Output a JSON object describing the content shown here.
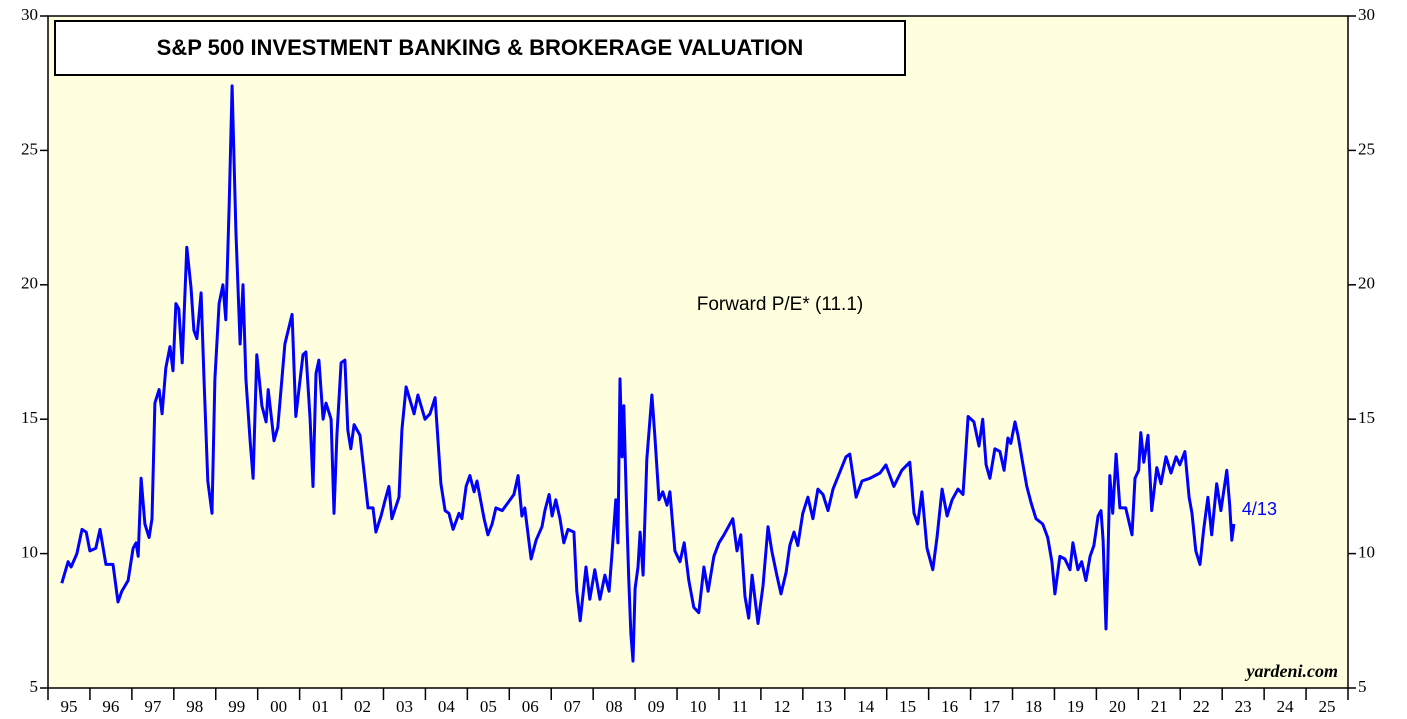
{
  "chart_data": {
    "type": "line",
    "title": "S&P 500 INVESTMENT BANKING & BROKERAGE VALUATION",
    "annotation": "Forward P/E* (11.1)",
    "end_label": "4/13",
    "source": "yardeni.com",
    "xlim": [
      1995,
      2026
    ],
    "ylim": [
      5,
      30
    ],
    "yticks": [
      5,
      10,
      15,
      20,
      25,
      30
    ],
    "xtick_marks": [
      1995,
      1996,
      1997,
      1998,
      1999,
      2000,
      2001,
      2002,
      2003,
      2004,
      2005,
      2006,
      2007,
      2008,
      2009,
      2010,
      2011,
      2012,
      2013,
      2014,
      2015,
      2016,
      2017,
      2018,
      2019,
      2020,
      2021,
      2022,
      2023,
      2024,
      2025,
      2026
    ],
    "xticks": [
      {
        "value": 1995.5,
        "label": "95"
      },
      {
        "value": 1996.5,
        "label": "96"
      },
      {
        "value": 1997.5,
        "label": "97"
      },
      {
        "value": 1998.5,
        "label": "98"
      },
      {
        "value": 1999.5,
        "label": "99"
      },
      {
        "value": 2000.5,
        "label": "00"
      },
      {
        "value": 2001.5,
        "label": "01"
      },
      {
        "value": 2002.5,
        "label": "02"
      },
      {
        "value": 2003.5,
        "label": "03"
      },
      {
        "value": 2004.5,
        "label": "04"
      },
      {
        "value": 2005.5,
        "label": "05"
      },
      {
        "value": 2006.5,
        "label": "06"
      },
      {
        "value": 2007.5,
        "label": "07"
      },
      {
        "value": 2008.5,
        "label": "08"
      },
      {
        "value": 2009.5,
        "label": "09"
      },
      {
        "value": 2010.5,
        "label": "10"
      },
      {
        "value": 2011.5,
        "label": "11"
      },
      {
        "value": 2012.5,
        "label": "12"
      },
      {
        "value": 2013.5,
        "label": "13"
      },
      {
        "value": 2014.5,
        "label": "14"
      },
      {
        "value": 2015.5,
        "label": "15"
      },
      {
        "value": 2016.5,
        "label": "16"
      },
      {
        "value": 2017.5,
        "label": "17"
      },
      {
        "value": 2018.5,
        "label": "18"
      },
      {
        "value": 2019.5,
        "label": "19"
      },
      {
        "value": 2020.5,
        "label": "20"
      },
      {
        "value": 2021.5,
        "label": "21"
      },
      {
        "value": 2022.5,
        "label": "22"
      },
      {
        "value": 2023.5,
        "label": "23"
      },
      {
        "value": 2024.5,
        "label": "24"
      },
      {
        "value": 2025.5,
        "label": "25"
      }
    ],
    "background": "#ffffe0",
    "series": [
      {
        "color": "#0000ff",
        "x": [
          1995.33,
          1995.48,
          1995.55,
          1995.69,
          1995.81,
          1995.91,
          1996.0,
          1996.14,
          1996.24,
          1996.38,
          1996.55,
          1996.67,
          1996.76,
          1996.91,
          1997.03,
          1997.1,
          1997.15,
          1997.22,
          1997.31,
          1997.41,
          1997.48,
          1997.55,
          1997.65,
          1997.72,
          1997.81,
          1997.91,
          1997.98,
          1998.05,
          1998.12,
          1998.2,
          1998.31,
          1998.41,
          1998.48,
          1998.55,
          1998.65,
          1998.72,
          1998.81,
          1998.91,
          1998.98,
          1999.08,
          1999.17,
          1999.24,
          1999.32,
          1999.39,
          1999.48,
          1999.58,
          1999.65,
          1999.72,
          1999.82,
          1999.89,
          1999.98,
          2000.1,
          2000.2,
          2000.25,
          2000.39,
          2000.48,
          2000.65,
          2000.82,
          2000.91,
          2001.08,
          2001.15,
          2001.25,
          2001.32,
          2001.39,
          2001.46,
          2001.56,
          2001.63,
          2001.75,
          2001.82,
          2001.89,
          2001.99,
          2002.08,
          2002.15,
          2002.22,
          2002.3,
          2002.44,
          2002.63,
          2002.75,
          2002.82,
          2002.94,
          2003.04,
          2003.13,
          2003.2,
          2003.37,
          2003.44,
          2003.54,
          2003.73,
          2003.82,
          2003.99,
          2004.11,
          2004.23,
          2004.37,
          2004.47,
          2004.56,
          2004.66,
          2004.8,
          2004.87,
          2004.97,
          2005.06,
          2005.16,
          2005.23,
          2005.4,
          2005.49,
          2005.59,
          2005.68,
          2005.83,
          2006.02,
          2006.11,
          2006.21,
          2006.3,
          2006.37,
          2006.52,
          2006.64,
          2006.78,
          2006.85,
          2006.95,
          2007.02,
          2007.11,
          2007.21,
          2007.3,
          2007.4,
          2007.54,
          2007.61,
          2007.69,
          2007.83,
          2007.92,
          2008.04,
          2008.16,
          2008.28,
          2008.38,
          2008.45,
          2008.54,
          2008.59,
          2008.64,
          2008.69,
          2008.73,
          2008.81,
          2008.85,
          2008.9,
          2008.95,
          2009.0,
          2009.07,
          2009.12,
          2009.19,
          2009.28,
          2009.4,
          2009.47,
          2009.57,
          2009.66,
          2009.76,
          2009.83,
          2009.95,
          2010.07,
          2010.17,
          2010.28,
          2010.4,
          2010.52,
          2010.64,
          2010.74,
          2010.88,
          2011.0,
          2011.12,
          2011.33,
          2011.43,
          2011.52,
          2011.62,
          2011.71,
          2011.79,
          2011.93,
          2012.05,
          2012.17,
          2012.26,
          2012.38,
          2012.48,
          2012.6,
          2012.69,
          2012.79,
          2012.88,
          2013.0,
          2013.12,
          2013.24,
          2013.36,
          2013.48,
          2013.6,
          2013.72,
          2014.03,
          2014.12,
          2014.27,
          2014.41,
          2014.6,
          2014.84,
          2014.98,
          2015.17,
          2015.36,
          2015.55,
          2015.65,
          2015.74,
          2015.84,
          2015.96,
          2016.1,
          2016.2,
          2016.32,
          2016.44,
          2016.56,
          2016.7,
          2016.82,
          2016.94,
          2017.08,
          2017.2,
          2017.29,
          2017.37,
          2017.46,
          2017.58,
          2017.7,
          2017.8,
          2017.89,
          2017.96,
          2018.06,
          2018.13,
          2018.25,
          2018.34,
          2018.44,
          2018.56,
          2018.72,
          2018.84,
          2018.94,
          2019.01,
          2019.13,
          2019.25,
          2019.37,
          2019.44,
          2019.56,
          2019.65,
          2019.75,
          2019.85,
          2019.94,
          2020.04,
          2020.11,
          2020.16,
          2020.23,
          2020.27,
          2020.32,
          2020.39,
          2020.47,
          2020.56,
          2020.7,
          2020.85,
          2020.92,
          2021.01,
          2021.06,
          2021.13,
          2021.23,
          2021.32,
          2021.44,
          2021.54,
          2021.66,
          2021.78,
          2021.9,
          2021.99,
          2022.11,
          2022.21,
          2022.28,
          2022.37,
          2022.47,
          2022.56,
          2022.66,
          2022.75,
          2022.87,
          2022.97,
          2023.11,
          2023.18,
          2023.23,
          2023.28
        ],
        "values": [
          8.9,
          9.7,
          9.5,
          10.0,
          10.9,
          10.8,
          10.1,
          10.2,
          10.9,
          9.6,
          9.6,
          8.2,
          8.6,
          9.0,
          10.2,
          10.4,
          9.9,
          12.8,
          11.1,
          10.6,
          11.3,
          15.6,
          16.1,
          15.2,
          16.9,
          17.7,
          16.8,
          19.3,
          19.1,
          17.1,
          21.4,
          19.9,
          18.3,
          18.0,
          19.7,
          16.5,
          12.7,
          11.5,
          16.5,
          19.3,
          20.0,
          18.7,
          23.0,
          27.4,
          22.0,
          17.8,
          20.0,
          16.5,
          14.2,
          12.8,
          17.4,
          15.5,
          14.9,
          16.1,
          14.2,
          14.7,
          17.8,
          18.9,
          15.1,
          17.4,
          17.5,
          15.0,
          12.5,
          16.7,
          17.2,
          15.0,
          15.6,
          15.0,
          11.5,
          14.4,
          17.1,
          17.2,
          14.6,
          13.9,
          14.8,
          14.4,
          11.7,
          11.7,
          10.8,
          11.4,
          12.0,
          12.5,
          11.3,
          12.1,
          14.6,
          16.2,
          15.2,
          15.9,
          15.0,
          15.2,
          15.8,
          12.6,
          11.6,
          11.5,
          10.9,
          11.5,
          11.3,
          12.5,
          12.9,
          12.3,
          12.7,
          11.3,
          10.7,
          11.1,
          11.7,
          11.6,
          12.0,
          12.2,
          12.9,
          11.4,
          11.7,
          9.8,
          10.5,
          11.0,
          11.6,
          12.2,
          11.4,
          12.0,
          11.3,
          10.4,
          10.9,
          10.8,
          8.6,
          7.5,
          9.5,
          8.3,
          9.4,
          8.3,
          9.2,
          8.6,
          10.0,
          12.0,
          10.4,
          16.5,
          13.6,
          15.5,
          11.0,
          9.0,
          7.0,
          6.0,
          8.7,
          9.5,
          10.8,
          9.2,
          13.5,
          15.9,
          14.4,
          12.0,
          12.3,
          11.8,
          12.3,
          10.1,
          9.7,
          10.4,
          9.0,
          8.0,
          7.8,
          9.5,
          8.6,
          9.9,
          10.4,
          10.7,
          11.3,
          10.1,
          10.7,
          8.4,
          7.6,
          9.2,
          7.4,
          8.8,
          11.0,
          10.1,
          9.2,
          8.5,
          9.3,
          10.3,
          10.8,
          10.3,
          11.5,
          12.1,
          11.3,
          12.4,
          12.2,
          11.6,
          12.4,
          13.6,
          13.7,
          12.1,
          12.7,
          12.8,
          13.0,
          13.3,
          12.5,
          13.1,
          13.4,
          11.5,
          11.1,
          12.3,
          10.2,
          9.4,
          10.6,
          12.4,
          11.4,
          12.0,
          12.4,
          12.2,
          15.1,
          14.9,
          14.0,
          15.0,
          13.3,
          12.8,
          13.9,
          13.8,
          13.1,
          14.3,
          14.1,
          14.9,
          14.4,
          13.3,
          12.5,
          11.9,
          11.3,
          11.1,
          10.6,
          9.7,
          8.5,
          9.9,
          9.8,
          9.4,
          10.4,
          9.4,
          9.7,
          9.0,
          9.9,
          10.3,
          11.4,
          11.6,
          10.5,
          7.2,
          9.4,
          12.9,
          11.5,
          13.7,
          11.7,
          11.7,
          10.7,
          12.8,
          13.1,
          14.5,
          13.4,
          14.4,
          11.6,
          13.2,
          12.6,
          13.6,
          13.0,
          13.6,
          13.3,
          13.8,
          12.1,
          11.5,
          10.1,
          9.6,
          10.9,
          12.1,
          10.7,
          12.6,
          11.6,
          13.1,
          11.8,
          10.5,
          11.1
        ]
      }
    ]
  }
}
